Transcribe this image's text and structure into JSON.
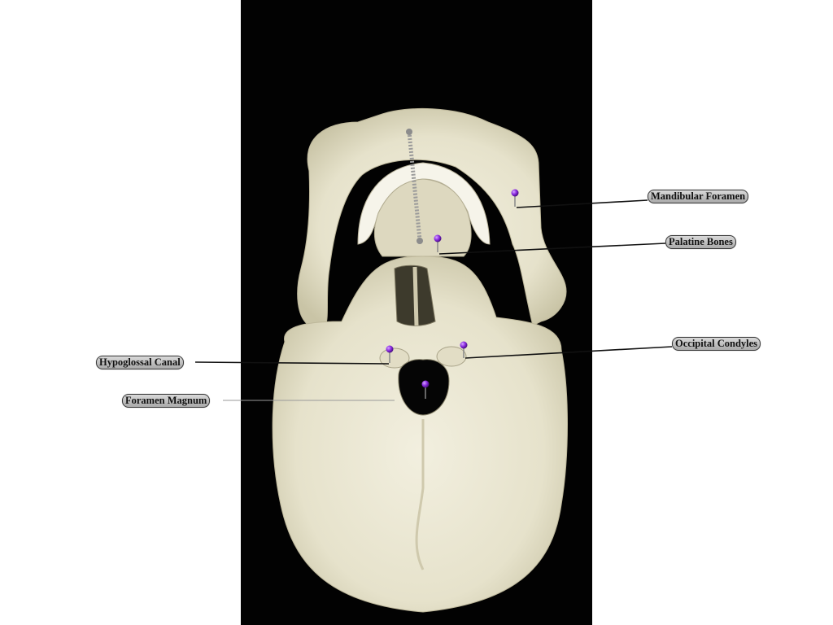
{
  "labels": {
    "mandibular_foramen": "Mandibular Foramen",
    "palatine_bones": "Palatine Bones",
    "occipital_condyles": "Occipital Condyles",
    "hypoglossal_canal": "Hypoglossal Canal",
    "foramen_magnum": "Foramen Magnum"
  },
  "colors": {
    "photo_background": "#020202",
    "bone": "#ece9d6",
    "pin_head": "#8a2be2",
    "leader_line": "#111111",
    "label_fill": "#c4c4c4"
  }
}
